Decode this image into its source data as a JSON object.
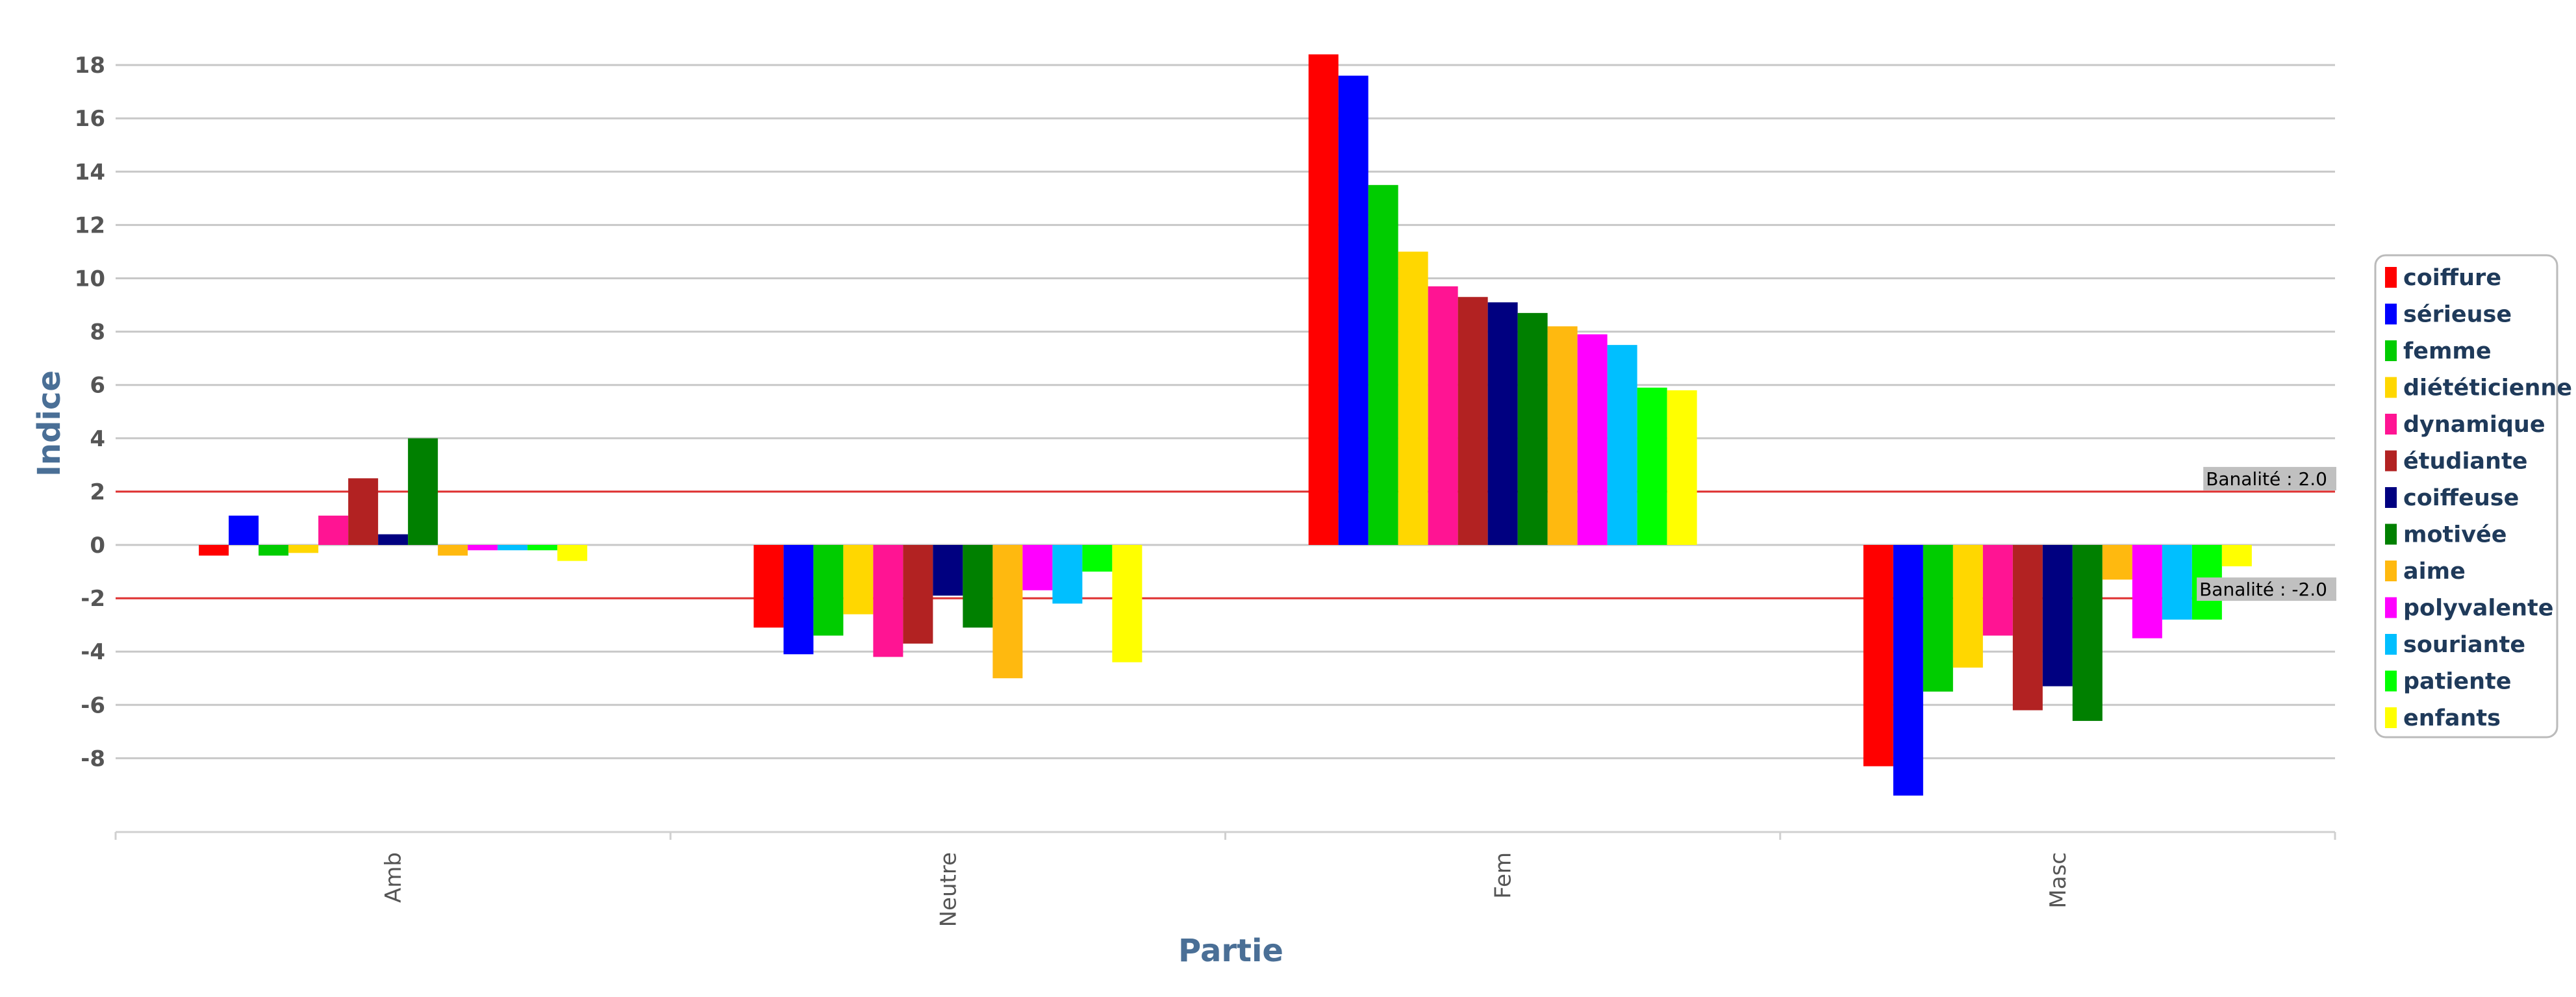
{
  "chart_data": {
    "type": "bar",
    "xlabel": "Partie",
    "ylabel": "Indice",
    "categories": [
      "Amb",
      "Neutre",
      "Fem",
      "Masc"
    ],
    "yticks": [
      -8,
      -6,
      -4,
      -2,
      0,
      2,
      4,
      6,
      8,
      10,
      12,
      14,
      16,
      18
    ],
    "ylim": [
      -10.7,
      19.6
    ],
    "grid": true,
    "legend_position": "right",
    "series": [
      {
        "name": "coiffure",
        "color": "#ff0000",
        "values": [
          -0.4,
          -3.1,
          18.4,
          -8.3
        ]
      },
      {
        "name": "sérieuse",
        "color": "#0000ff",
        "values": [
          1.1,
          -4.1,
          17.6,
          -9.4
        ]
      },
      {
        "name": "femme",
        "color": "#00cc00",
        "values": [
          -0.4,
          -3.4,
          13.5,
          -5.5
        ]
      },
      {
        "name": "diététicienne",
        "color": "#ffd700",
        "values": [
          -0.3,
          -2.6,
          11.0,
          -4.6
        ]
      },
      {
        "name": "dynamique",
        "color": "#ff1493",
        "values": [
          1.1,
          -4.2,
          9.7,
          -3.4
        ]
      },
      {
        "name": "étudiante",
        "color": "#b22222",
        "values": [
          2.5,
          -3.7,
          9.3,
          -6.2
        ]
      },
      {
        "name": "coiffeuse",
        "color": "#000080",
        "values": [
          0.4,
          -1.9,
          9.1,
          -5.3
        ]
      },
      {
        "name": "motivée",
        "color": "#008000",
        "values": [
          4.0,
          -3.1,
          8.7,
          -6.6
        ]
      },
      {
        "name": "aime",
        "color": "#ffb90f",
        "values": [
          -0.4,
          -5.0,
          8.2,
          -1.3
        ]
      },
      {
        "name": "polyvalente",
        "color": "#ff00ff",
        "values": [
          -0.2,
          -1.7,
          7.9,
          -3.5
        ]
      },
      {
        "name": "souriante",
        "color": "#00bfff",
        "values": [
          -0.2,
          -2.2,
          7.5,
          -2.8
        ]
      },
      {
        "name": "patiente",
        "color": "#00ff00",
        "values": [
          -0.2,
          -1.0,
          5.9,
          -2.8
        ]
      },
      {
        "name": "enfants",
        "color": "#ffff00",
        "values": [
          -0.6,
          -4.4,
          5.8,
          -0.8
        ]
      }
    ],
    "reference_lines": [
      {
        "value": 2.0,
        "label": "Banalité : 2.0",
        "color": "#e03030"
      },
      {
        "value": -2.0,
        "label": "Banalité : -2.0",
        "color": "#e03030"
      }
    ]
  }
}
